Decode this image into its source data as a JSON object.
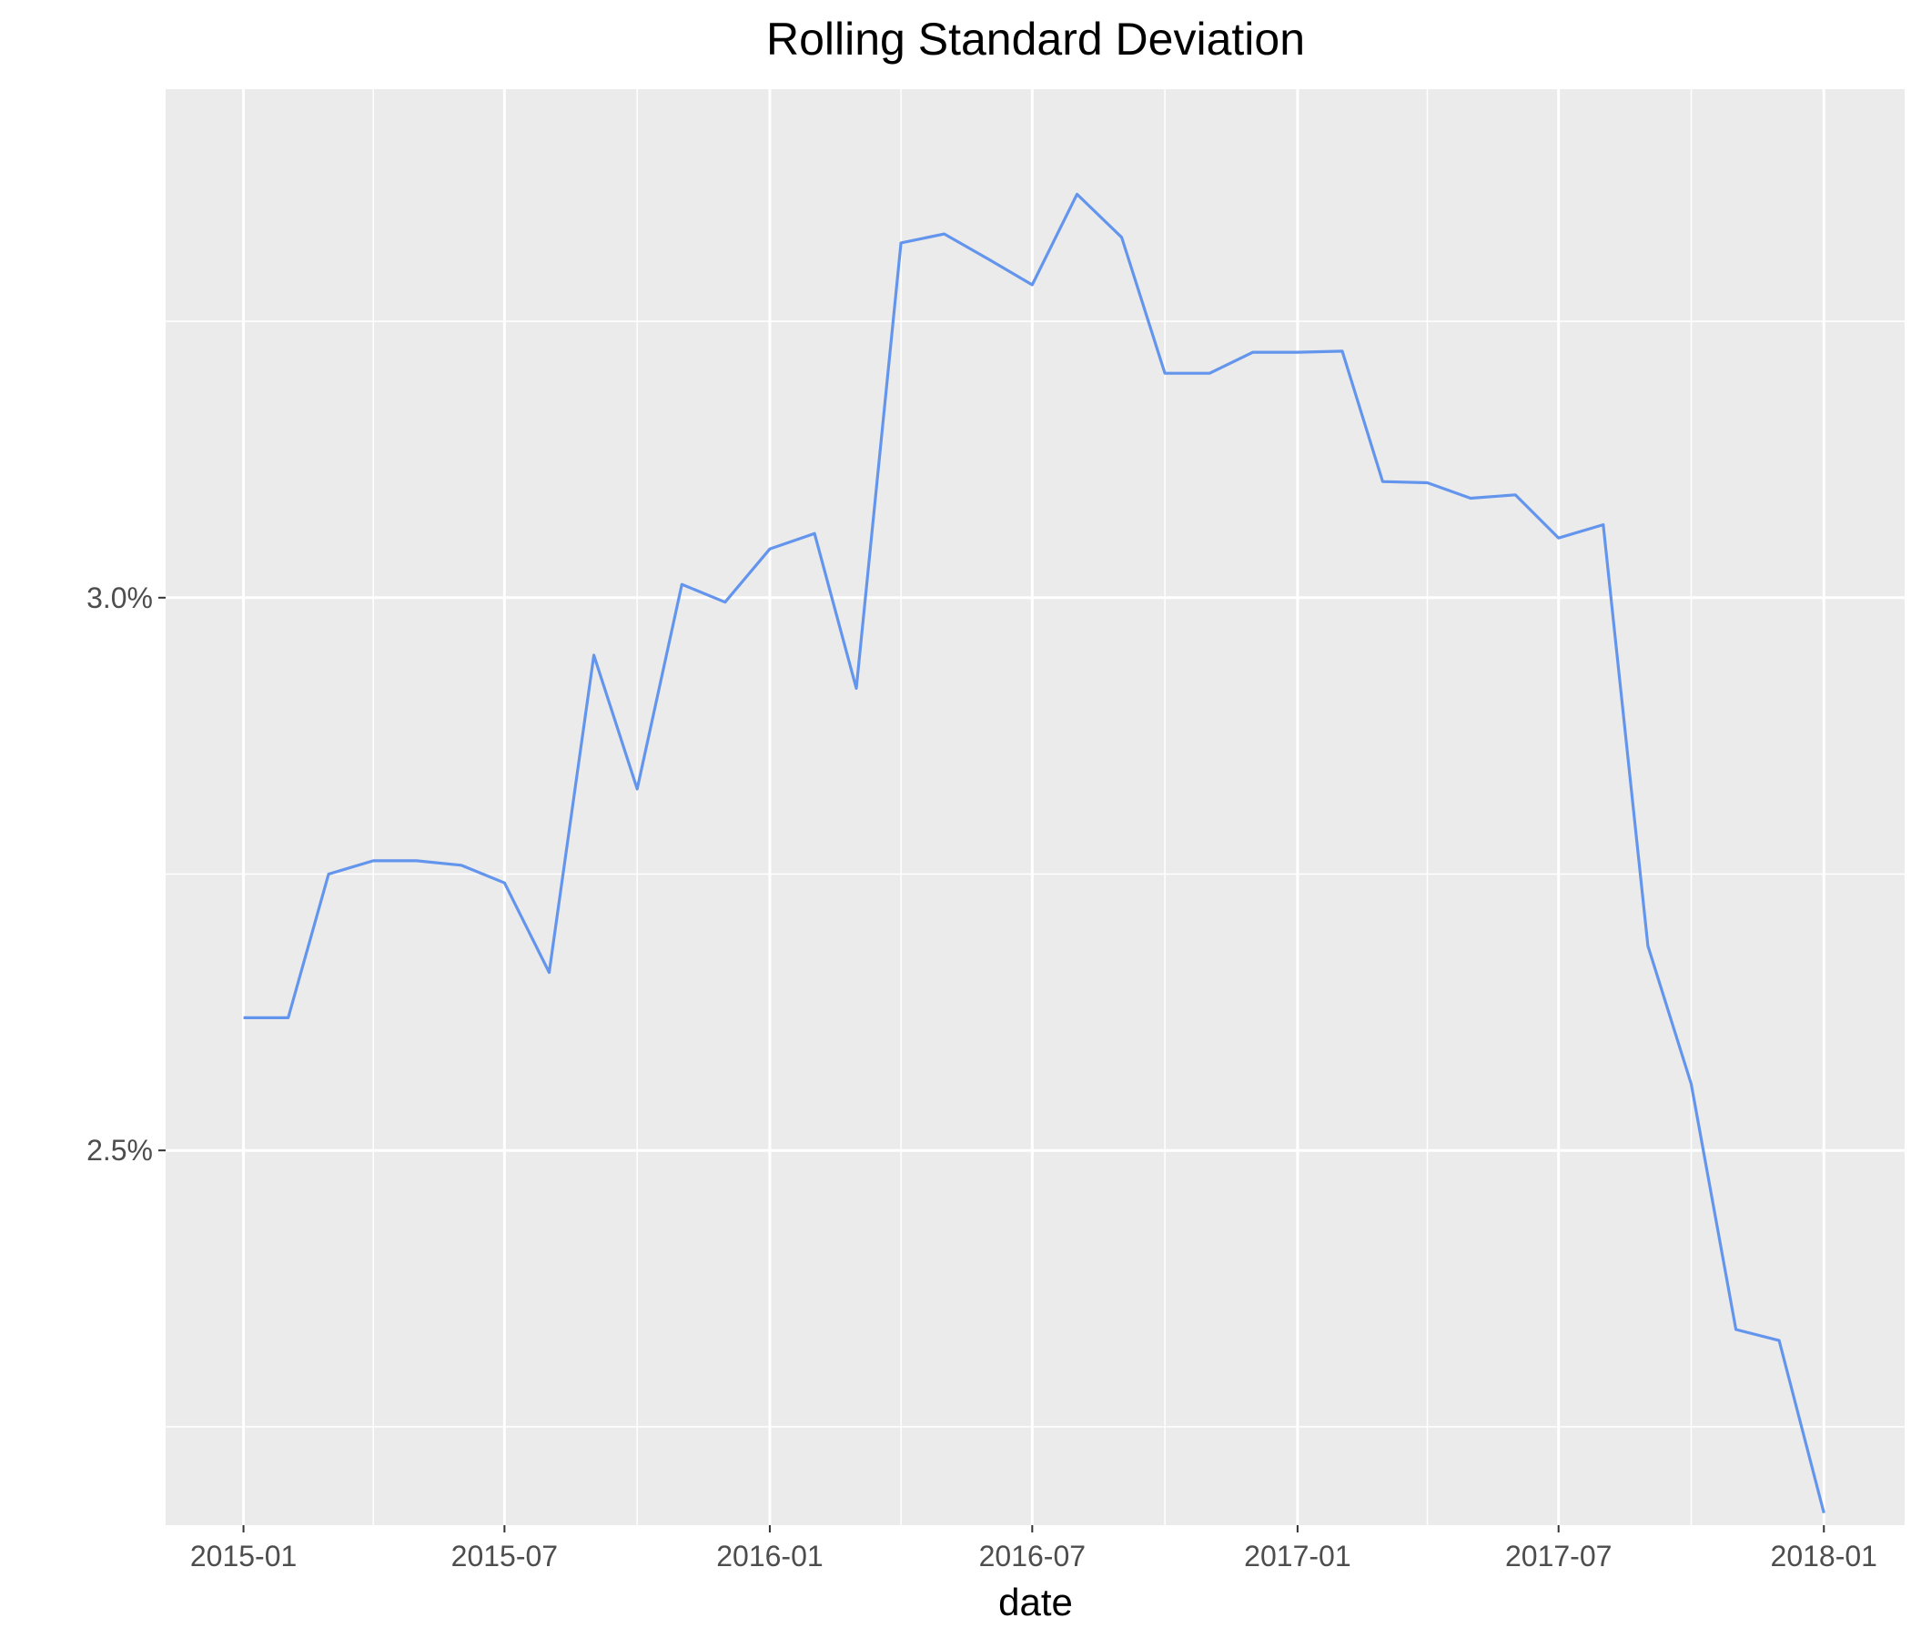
{
  "chart_data": {
    "type": "line",
    "title": "Rolling Standard Deviation",
    "xlabel": "date",
    "ylabel": "",
    "x_ticks": [
      "2015-01",
      "2015-07",
      "2016-01",
      "2016-07",
      "2017-01",
      "2017-07",
      "2018-01"
    ],
    "y_ticks": [
      {
        "value": 0.025,
        "label": "2.5%"
      },
      {
        "value": 0.03,
        "label": "3.0%"
      }
    ],
    "x_range": [
      "2014-11-08",
      "2018-02-26"
    ],
    "ylim": [
      0.02161,
      0.0346
    ],
    "grid": true,
    "line_color": "#6495ED",
    "panel_color": "#EBEBEB",
    "series": [
      {
        "x": [
          "2015-01-01",
          "2015-02-01",
          "2015-03-01",
          "2015-04-01",
          "2015-05-01",
          "2015-06-01",
          "2015-07-01",
          "2015-08-01",
          "2015-09-01",
          "2015-10-01",
          "2015-11-01",
          "2015-12-01",
          "2016-01-01",
          "2016-02-01",
          "2016-03-01",
          "2016-04-01",
          "2016-05-01",
          "2016-06-01",
          "2016-07-01",
          "2016-08-01",
          "2016-09-01",
          "2016-10-01",
          "2016-11-01",
          "2016-12-01",
          "2017-01-01",
          "2017-02-01",
          "2017-03-01",
          "2017-04-01",
          "2017-05-01",
          "2017-06-01",
          "2017-07-01",
          "2017-08-01",
          "2017-09-01",
          "2017-10-01",
          "2017-11-01",
          "2017-12-01",
          "2018-01-01"
        ],
        "y": [
          0.0262,
          0.0262,
          0.0275,
          0.02762,
          0.02762,
          0.02758,
          0.02742,
          0.02661,
          0.02948,
          0.02827,
          0.03012,
          0.02996,
          0.03044,
          0.03058,
          0.02918,
          0.03321,
          0.03329,
          0.03306,
          0.03283,
          0.03365,
          0.03326,
          0.03203,
          0.03203,
          0.03222,
          0.03222,
          0.03223,
          0.03105,
          0.03104,
          0.0309,
          0.03093,
          0.03054,
          0.03066,
          0.02685,
          0.0256,
          0.02338,
          0.02328,
          0.02172
        ]
      }
    ]
  }
}
